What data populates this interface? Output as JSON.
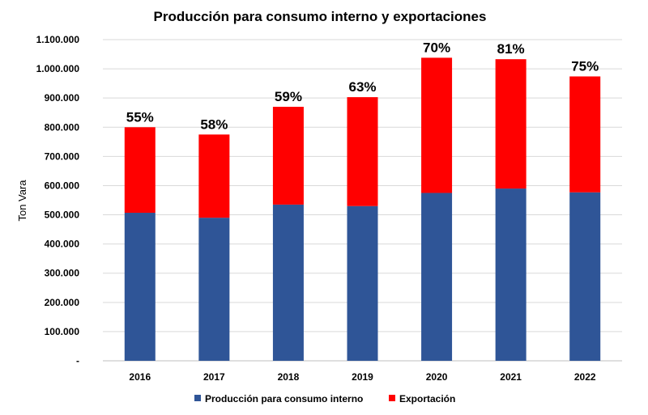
{
  "chart_data": {
    "type": "bar",
    "stacked": true,
    "title": "Producción para consumo interno y exportaciones",
    "ylabel": "Ton Vara",
    "xlabel": "",
    "ylim": [
      0,
      1100000
    ],
    "y_ticks": [
      0,
      100000,
      200000,
      300000,
      400000,
      500000,
      600000,
      700000,
      800000,
      900000,
      1000000,
      1100000
    ],
    "y_tick_labels": [
      "-",
      "100.000",
      "200.000",
      "300.000",
      "400.000",
      "500.000",
      "600.000",
      "700.000",
      "800.000",
      "900.000",
      "1.000.000",
      "1.100.000"
    ],
    "categories": [
      "2016",
      "2017",
      "2018",
      "2019",
      "2020",
      "2021",
      "2022"
    ],
    "series": [
      {
        "name": "Producción para consumo interno",
        "color": "#2f5597",
        "values": [
          507000,
          490000,
          535000,
          530000,
          575000,
          590000,
          577000
        ]
      },
      {
        "name": "Exportación",
        "color": "#ff0000",
        "values": [
          293000,
          285000,
          335000,
          373000,
          463000,
          443000,
          397000
        ]
      }
    ],
    "annotations": [
      "55%",
      "58%",
      "59%",
      "63%",
      "70%",
      "81%",
      "75%"
    ],
    "grid": true,
    "legend_position": "bottom"
  }
}
